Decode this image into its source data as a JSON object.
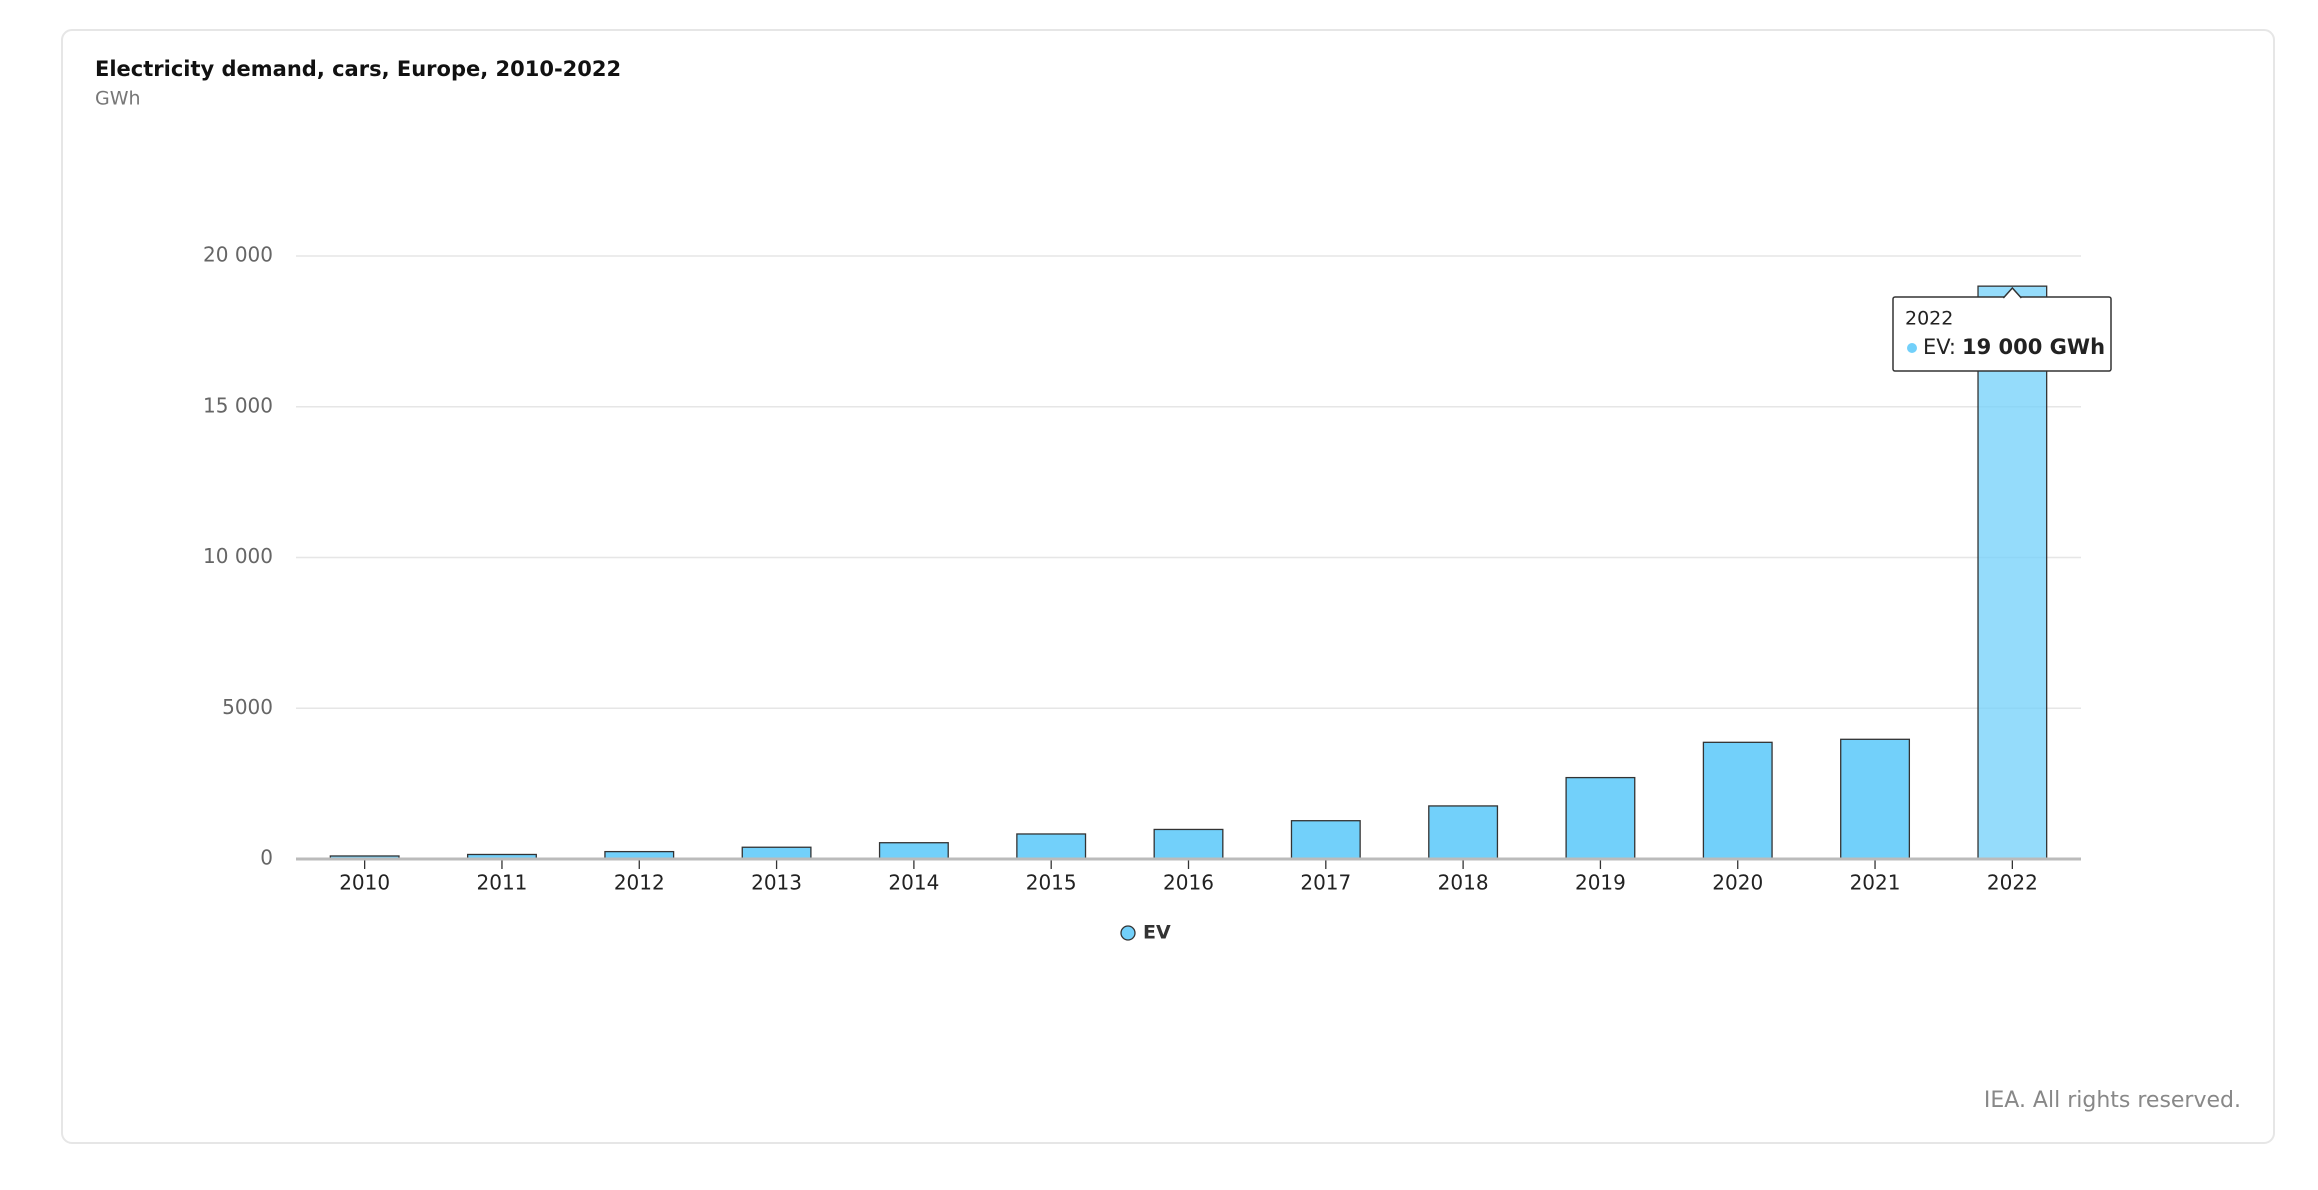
{
  "chart_data": {
    "type": "bar",
    "title": "Electricity demand, cars, Europe, 2010-2022",
    "subtitle": "GWh",
    "categories": [
      "2010",
      "2011",
      "2012",
      "2013",
      "2014",
      "2015",
      "2016",
      "2017",
      "2018",
      "2019",
      "2020",
      "2021",
      "2022"
    ],
    "series": [
      {
        "name": "EV",
        "color": "#72d0fa",
        "values": [
          100,
          150,
          245,
          390,
          540,
          830,
          980,
          1270,
          1760,
          2700,
          3870,
          3970,
          19000
        ]
      }
    ],
    "ylim": [
      0,
      20000
    ],
    "yticks": [
      0,
      5000,
      {
        "value": 10000,
        "label": "10 000"
      },
      {
        "value": 15000,
        "label": "15 000"
      },
      {
        "value": 20000,
        "label": "20 000"
      }
    ],
    "grid": true,
    "legend": "bottom",
    "tooltip": {
      "label": "EV:",
      "value_label": "19 000 GWh"
    },
    "footer": "IEA. All rights reserved."
  }
}
